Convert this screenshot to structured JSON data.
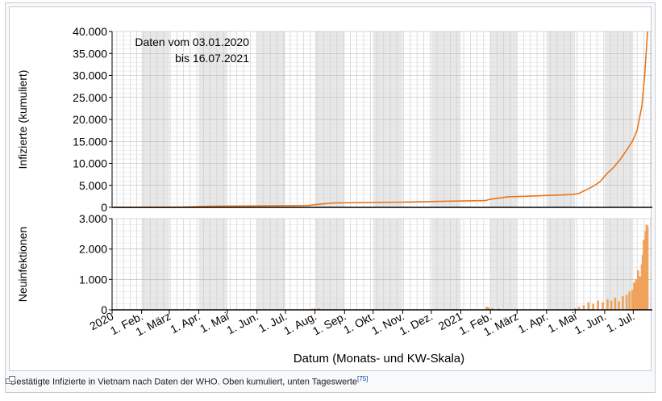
{
  "caption": {
    "text": "Bestätigte Infizierte in Vietnam nach Daten der WHO. Oben kumuliert, unten Tageswerte",
    "ref": "[75]"
  },
  "colors": {
    "line": "#e8761c",
    "bars": "#f0a25a",
    "shade": "#e8e8e8",
    "grid": "#c8c8c8"
  },
  "icons": {
    "enlarge": "magnify-clip-icon"
  },
  "chart_data": [
    {
      "type": "line",
      "annotation_line1": "Daten vom 03.01.2020",
      "annotation_line2": "bis 16.07.2021",
      "ylabel": "Infizierte (kumuliert)",
      "ylim": [
        0,
        40000
      ],
      "yticks": [
        "0",
        "5.000",
        "10.000",
        "15.000",
        "20.000",
        "25.000",
        "30.000",
        "35.000",
        "40.000"
      ],
      "grid": true,
      "x": [
        "2020-01-03",
        "2020-03-01",
        "2020-03-20",
        "2020-04-15",
        "2020-06-01",
        "2020-07-25",
        "2020-08-05",
        "2020-08-20",
        "2020-09-15",
        "2020-11-01",
        "2020-12-15",
        "2021-01-27",
        "2021-02-01",
        "2021-02-20",
        "2021-03-15",
        "2021-04-15",
        "2021-04-29",
        "2021-05-05",
        "2021-05-12",
        "2021-05-20",
        "2021-05-27",
        "2021-06-03",
        "2021-06-10",
        "2021-06-17",
        "2021-06-24",
        "2021-06-30",
        "2021-07-05",
        "2021-07-10",
        "2021-07-13",
        "2021-07-16"
      ],
      "series": [
        {
          "values": [
            0,
            16,
            90,
            268,
            328,
            420,
            700,
            1000,
            1060,
            1200,
            1400,
            1550,
            1850,
            2400,
            2550,
            2800,
            2950,
            3200,
            3900,
            4800,
            5800,
            7600,
            9000,
            10800,
            13000,
            15000,
            17500,
            23000,
            30000,
            40000
          ]
        }
      ]
    },
    {
      "type": "bar",
      "xlabel": "Datum (Monats- und KW-Skala)",
      "ylabel": "Neuinfektionen",
      "ylim": [
        0,
        3000
      ],
      "yticks": [
        "0",
        "1.000",
        "2.000",
        "3.000"
      ],
      "grid": true,
      "xticks": [
        "2020",
        "1. Feb.",
        "1. März",
        "1. Apr.",
        "1. Mai",
        "1. Jun.",
        "1. Jul.",
        "1. Aug.",
        "1. Sep.",
        "1. Okt.",
        "1. Nov.",
        "1. Dez.",
        "2021",
        "1. Feb.",
        "1. März",
        "1. Apr.",
        "1. Mai",
        "1. Jun.",
        "1. Jul."
      ],
      "x": [
        "2020-03-20",
        "2020-04-01",
        "2020-07-29",
        "2020-08-01",
        "2020-08-05",
        "2021-01-28",
        "2021-01-30",
        "2021-02-03",
        "2021-02-10",
        "2021-05-01",
        "2021-05-05",
        "2021-05-10",
        "2021-05-15",
        "2021-05-20",
        "2021-05-25",
        "2021-05-30",
        "2021-06-04",
        "2021-06-08",
        "2021-06-12",
        "2021-06-16",
        "2021-06-20",
        "2021-06-24",
        "2021-06-27",
        "2021-06-30",
        "2021-07-02",
        "2021-07-04",
        "2021-07-06",
        "2021-07-08",
        "2021-07-10",
        "2021-07-11",
        "2021-07-12",
        "2021-07-13",
        "2021-07-14",
        "2021-07-15",
        "2021-07-16"
      ],
      "values": [
        30,
        20,
        40,
        45,
        50,
        100,
        80,
        60,
        40,
        50,
        100,
        150,
        250,
        200,
        300,
        250,
        350,
        300,
        400,
        280,
        450,
        500,
        600,
        650,
        900,
        1000,
        1300,
        1100,
        1500,
        1800,
        2300,
        2000,
        2600,
        2800,
        2750
      ]
    }
  ]
}
